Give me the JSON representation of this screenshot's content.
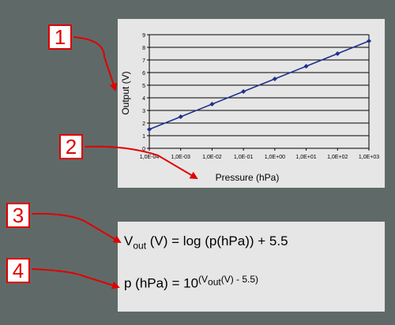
{
  "callouts": [
    "1",
    "2",
    "3",
    "4"
  ],
  "chart_data": {
    "type": "line",
    "x": [
      "1,0E-04",
      "1,0E-03",
      "1,0E-02",
      "1,0E-01",
      "1,0E+00",
      "1,0E+01",
      "1,0E+02",
      "1,0E+03"
    ],
    "series": [
      {
        "values": [
          1.5,
          2.5,
          3.5,
          4.5,
          5.5,
          6.5,
          7.5,
          8.5
        ]
      }
    ],
    "xlabel": "Pressure (hPa)",
    "ylabel": "Output (V)",
    "ylim": [
      0,
      9
    ],
    "yticks": [
      "0",
      "1",
      "2",
      "3",
      "4",
      "5",
      "6",
      "7",
      "8",
      "9"
    ],
    "x_scale": "log",
    "grid": true,
    "line_color": "#1f2f8c"
  },
  "formulas": {
    "f1_v": "V",
    "f1_sub": "out",
    "f1_rest": " (V)  =  log (p(hPa)) + 5.5",
    "f2_lhs": "p (hPa)  =  10",
    "f2_sup1": "(V",
    "f2_sup_sub": "out",
    "f2_sup2": "(V) - 5.5)"
  },
  "colors": {
    "background": "#5f6a68",
    "panel": "#e6e6e6",
    "callout": "#e00000"
  }
}
